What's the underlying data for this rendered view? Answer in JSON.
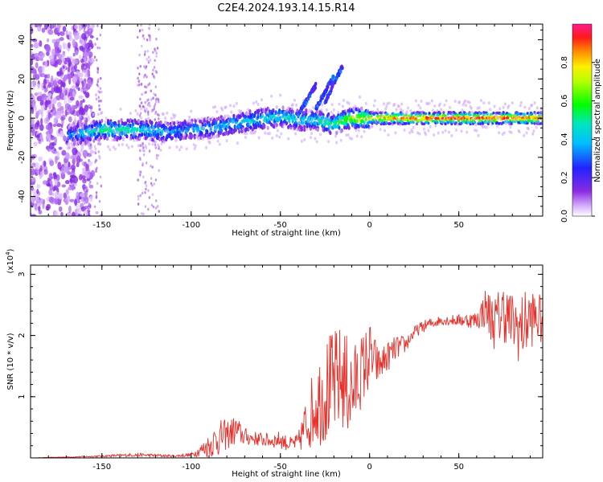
{
  "figure": {
    "title": "C2E4.2024.193.14.15.R14"
  },
  "colors": {
    "snr_line": "#e8302a",
    "background": "#ffffff",
    "axis": "#000000"
  },
  "chart_data": [
    {
      "type": "heatmap",
      "title": "C2E4.2024.193.14.15.R14",
      "xlabel": "Height of straight line (km)",
      "ylabel": "Frequency (Hz)",
      "xlim": [
        -190,
        97
      ],
      "ylim": [
        -50,
        48
      ],
      "xticks": [
        -150,
        -100,
        -50,
        0,
        50
      ],
      "yticks": [
        -40,
        -20,
        0,
        20,
        40
      ],
      "colorbar": {
        "label": "Normalized spectral amplitude",
        "range": [
          0,
          1
        ],
        "ticks": [
          0.0,
          0.2,
          0.4,
          0.6,
          0.8
        ],
        "colormap": "rainbow (white-violet-blue-cyan-green-yellow-red-magenta)"
      },
      "ridge": {
        "description": "main energy band around 0 Hz",
        "x": [
          -170,
          -150,
          -130,
          -110,
          -90,
          -70,
          -50,
          -40,
          -30,
          -20,
          -10,
          0,
          20,
          40,
          60,
          80,
          97
        ],
        "frequency": [
          -9,
          -6,
          -6,
          -7,
          -5,
          -2,
          1,
          -1,
          -1,
          -3,
          0,
          0,
          0,
          0,
          0,
          0,
          0
        ],
        "amplitude": [
          0.3,
          0.55,
          0.5,
          0.35,
          0.4,
          0.45,
          0.5,
          0.45,
          0.5,
          0.55,
          0.75,
          0.8,
          0.95,
          0.95,
          0.95,
          0.95,
          0.9
        ]
      },
      "branches": [
        {
          "x": [
            -40,
            -30
          ],
          "frequency": [
            2,
            17
          ]
        },
        {
          "x": [
            -30,
            -20
          ],
          "frequency": [
            5,
            22
          ]
        },
        {
          "x": [
            -25,
            -15
          ],
          "frequency": [
            8,
            27
          ]
        }
      ]
    },
    {
      "type": "line",
      "xlabel": "Height of straight line (km)",
      "ylabel": "SNR (10 * v/v)",
      "y_multiplier": "(x10^4)",
      "xlim": [
        -190,
        97
      ],
      "ylim": [
        0,
        3.15
      ],
      "xticks": [
        -150,
        -100,
        -50,
        0,
        50
      ],
      "yticks": [
        1,
        2,
        3
      ],
      "series": [
        {
          "x": [
            -190,
            -160,
            -130,
            -110,
            -100,
            -95,
            -90,
            -85,
            -80,
            -75,
            -70,
            -65,
            -60,
            -55,
            -50,
            -45,
            -40,
            -35,
            -30,
            -25,
            -20,
            -15,
            -10,
            -5,
            0,
            5,
            10,
            15,
            20,
            25,
            30,
            40,
            50,
            60,
            65,
            70,
            75,
            80,
            85,
            90,
            97
          ],
          "values": [
            0.0,
            0.02,
            0.05,
            0.03,
            0.05,
            0.12,
            0.2,
            0.32,
            0.38,
            0.45,
            0.35,
            0.32,
            0.3,
            0.28,
            0.3,
            0.22,
            0.25,
            0.6,
            0.9,
            1.1,
            1.2,
            1.3,
            1.05,
            1.4,
            1.65,
            1.5,
            1.65,
            1.8,
            1.85,
            2.05,
            2.15,
            2.25,
            2.25,
            2.25,
            2.45,
            2.2,
            2.4,
            2.2,
            2.1,
            2.3,
            2.25
          ],
          "noise": [
            0.0,
            0.01,
            0.03,
            0.02,
            0.03,
            0.1,
            0.2,
            0.3,
            0.25,
            0.25,
            0.15,
            0.12,
            0.12,
            0.12,
            0.15,
            0.12,
            0.15,
            0.5,
            0.7,
            0.9,
            0.9,
            0.9,
            0.8,
            0.6,
            0.6,
            0.3,
            0.25,
            0.2,
            0.15,
            0.1,
            0.1,
            0.08,
            0.1,
            0.15,
            0.35,
            0.45,
            0.5,
            0.5,
            0.6,
            0.5,
            0.4
          ]
        }
      ]
    }
  ]
}
